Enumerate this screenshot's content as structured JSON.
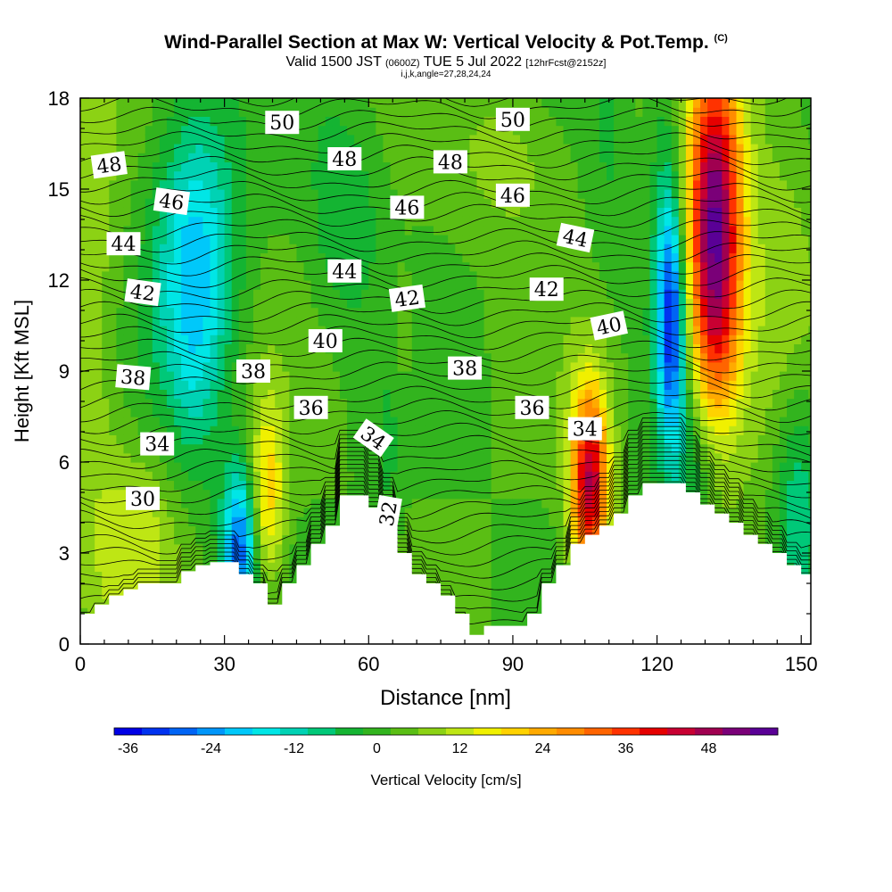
{
  "header": {
    "title": "Wind-Parallel Section at Max W: Vertical Velocity & Pot.Temp.",
    "copyright": "(C)",
    "valid_prefix": "Valid 1500 JST",
    "valid_utc": "(0600Z)",
    "valid_date": "TUE 5 Jul 2022",
    "forecast": "[12hrFcst@2152z]",
    "indices": "i,j,k,angle=27,28,24,24"
  },
  "chart_data": {
    "type": "heatmap",
    "xlabel": "Distance [nm]",
    "ylabel": "Height [Kft MSL]",
    "xlim": [
      0,
      152
    ],
    "ylim": [
      0,
      18
    ],
    "x_ticks": [
      0,
      30,
      60,
      90,
      120,
      150
    ],
    "y_ticks": [
      0,
      3,
      6,
      9,
      12,
      15,
      18
    ],
    "colorbar": {
      "label": "Vertical Velocity [cm/s]",
      "min": -38,
      "max": 54,
      "step": 4,
      "tick_values": [
        -36,
        -24,
        -12,
        0,
        12,
        24,
        36,
        48
      ],
      "colors": [
        "#0000e6",
        "#0032f0",
        "#0064f5",
        "#0096fa",
        "#00c8fa",
        "#00e6e6",
        "#00d2b4",
        "#00c878",
        "#14b432",
        "#32b41e",
        "#5abe14",
        "#8cd214",
        "#bee614",
        "#f0f000",
        "#ffd200",
        "#ffaa00",
        "#ff8c00",
        "#ff6400",
        "#ff3200",
        "#e60000",
        "#c80032",
        "#a00050",
        "#7a0078",
        "#5a0096"
      ]
    },
    "terrain": [
      [
        0,
        1.0
      ],
      [
        3,
        1.0
      ],
      [
        3,
        1.3
      ],
      [
        6,
        1.3
      ],
      [
        6,
        1.6
      ],
      [
        9,
        1.6
      ],
      [
        9,
        1.8
      ],
      [
        12,
        1.8
      ],
      [
        12,
        2.0
      ],
      [
        21,
        2.0
      ],
      [
        21,
        2.4
      ],
      [
        24,
        2.4
      ],
      [
        24,
        2.6
      ],
      [
        27,
        2.6
      ],
      [
        27,
        2.7
      ],
      [
        33,
        2.7
      ],
      [
        33,
        2.3
      ],
      [
        36,
        2.3
      ],
      [
        36,
        2.0
      ],
      [
        39,
        2.0
      ],
      [
        39,
        1.3
      ],
      [
        42,
        1.3
      ],
      [
        42,
        2.0
      ],
      [
        45,
        2.0
      ],
      [
        45,
        2.6
      ],
      [
        48,
        2.6
      ],
      [
        48,
        3.3
      ],
      [
        51,
        3.3
      ],
      [
        51,
        3.9
      ],
      [
        54,
        3.9
      ],
      [
        54,
        4.9
      ],
      [
        60,
        4.9
      ],
      [
        60,
        4.5
      ],
      [
        63,
        4.5
      ],
      [
        63,
        3.9
      ],
      [
        66,
        3.9
      ],
      [
        66,
        3.0
      ],
      [
        69,
        3.0
      ],
      [
        69,
        2.3
      ],
      [
        72,
        2.3
      ],
      [
        72,
        2.0
      ],
      [
        75,
        2.0
      ],
      [
        75,
        1.6
      ],
      [
        78,
        1.6
      ],
      [
        78,
        1.0
      ],
      [
        81,
        1.0
      ],
      [
        81,
        0.3
      ],
      [
        84,
        0.3
      ],
      [
        84,
        0.6
      ],
      [
        93,
        0.6
      ],
      [
        93,
        1.0
      ],
      [
        96,
        1.0
      ],
      [
        96,
        2.0
      ],
      [
        99,
        2.0
      ],
      [
        99,
        2.6
      ],
      [
        102,
        2.6
      ],
      [
        102,
        3.3
      ],
      [
        105,
        3.3
      ],
      [
        105,
        3.6
      ],
      [
        108,
        3.6
      ],
      [
        108,
        3.9
      ],
      [
        111,
        3.9
      ],
      [
        111,
        4.3
      ],
      [
        114,
        4.3
      ],
      [
        114,
        4.9
      ],
      [
        117,
        4.9
      ],
      [
        117,
        5.3
      ],
      [
        126,
        5.3
      ],
      [
        126,
        5.0
      ],
      [
        129,
        5.0
      ],
      [
        129,
        4.6
      ],
      [
        132,
        4.6
      ],
      [
        132,
        4.3
      ],
      [
        135,
        4.3
      ],
      [
        135,
        4.0
      ],
      [
        138,
        4.0
      ],
      [
        138,
        3.6
      ],
      [
        141,
        3.6
      ],
      [
        141,
        3.3
      ],
      [
        144,
        3.3
      ],
      [
        144,
        3.0
      ],
      [
        147,
        3.0
      ],
      [
        147,
        2.6
      ],
      [
        150,
        2.6
      ],
      [
        150,
        2.3
      ],
      [
        152,
        2.3
      ]
    ],
    "w_features": [
      {
        "x": 3,
        "y": 11,
        "sx": 4,
        "sy": 9,
        "v": 6
      },
      {
        "x": 12,
        "y": 3.5,
        "sx": 6,
        "sy": 2.2,
        "v": 10
      },
      {
        "x": 24,
        "y": 13,
        "sx": 6,
        "sy": 3.5,
        "v": -20
      },
      {
        "x": 24,
        "y": 9,
        "sx": 4,
        "sy": 3,
        "v": -6
      },
      {
        "x": 33,
        "y": 3.2,
        "sx": 2.5,
        "sy": 1.8,
        "v": -30
      },
      {
        "x": 39,
        "y": 5,
        "sx": 2.5,
        "sy": 2.2,
        "v": 18
      },
      {
        "x": 55,
        "y": 14,
        "sx": 5,
        "sy": 2.5,
        "v": -8
      },
      {
        "x": 64,
        "y": 7,
        "sx": 2,
        "sy": 3,
        "v": -5
      },
      {
        "x": 66,
        "y": 10,
        "sx": 3,
        "sy": 2,
        "v": 5
      },
      {
        "x": 90,
        "y": 16,
        "sx": 8,
        "sy": 2,
        "v": 6
      },
      {
        "x": 106,
        "y": 5.3,
        "sx": 2.8,
        "sy": 2.3,
        "v": 44
      },
      {
        "x": 110,
        "y": 16,
        "sx": 3,
        "sy": 3,
        "v": -4
      },
      {
        "x": 123,
        "y": 10.5,
        "sx": 2,
        "sy": 2.5,
        "v": -30
      },
      {
        "x": 122,
        "y": 14,
        "sx": 2.5,
        "sy": 4,
        "v": -10
      },
      {
        "x": 132,
        "y": 13.2,
        "sx": 4,
        "sy": 4.5,
        "v": 54
      },
      {
        "x": 128,
        "y": 6,
        "sx": 5,
        "sy": 2,
        "v": -12
      },
      {
        "x": 149,
        "y": 5,
        "sx": 4,
        "sy": 3,
        "v": -14
      },
      {
        "x": 145,
        "y": 10,
        "sx": 6,
        "sy": 6,
        "v": 7
      }
    ],
    "theta_labels": [
      {
        "text": "50",
        "x": 42,
        "y": 17.2,
        "angle": 0
      },
      {
        "text": "50",
        "x": 90,
        "y": 17.3,
        "angle": 0
      },
      {
        "text": "48",
        "x": 6,
        "y": 15.8,
        "angle": -8
      },
      {
        "text": "48",
        "x": 55,
        "y": 16,
        "angle": 0
      },
      {
        "text": "48",
        "x": 77,
        "y": 15.9,
        "angle": 0
      },
      {
        "text": "46",
        "x": 19,
        "y": 14.6,
        "angle": 8
      },
      {
        "text": "46",
        "x": 68,
        "y": 14.4,
        "angle": 0
      },
      {
        "text": "46",
        "x": 90,
        "y": 14.8,
        "angle": 0
      },
      {
        "text": "44",
        "x": 9,
        "y": 13.2,
        "angle": 0
      },
      {
        "text": "44",
        "x": 55,
        "y": 12.3,
        "angle": 0
      },
      {
        "text": "44",
        "x": 103,
        "y": 13.4,
        "angle": 12
      },
      {
        "text": "42",
        "x": 13,
        "y": 11.6,
        "angle": 8
      },
      {
        "text": "42",
        "x": 68,
        "y": 11.4,
        "angle": -8
      },
      {
        "text": "42",
        "x": 97,
        "y": 11.7,
        "angle": 0
      },
      {
        "text": "40",
        "x": 51,
        "y": 10,
        "angle": 0
      },
      {
        "text": "40",
        "x": 110,
        "y": 10.5,
        "angle": -12
      },
      {
        "text": "38",
        "x": 11,
        "y": 8.8,
        "angle": 5
      },
      {
        "text": "38",
        "x": 36,
        "y": 9,
        "angle": 0
      },
      {
        "text": "38",
        "x": 80,
        "y": 9.1,
        "angle": 0
      },
      {
        "text": "36",
        "x": 48,
        "y": 7.8,
        "angle": 0
      },
      {
        "text": "36",
        "x": 94,
        "y": 7.8,
        "angle": 0
      },
      {
        "text": "34",
        "x": 16,
        "y": 6.6,
        "angle": 0
      },
      {
        "text": "34",
        "x": 61,
        "y": 6.8,
        "angle": 35
      },
      {
        "text": "34",
        "x": 105,
        "y": 7.1,
        "angle": 0
      },
      {
        "text": "30",
        "x": 13,
        "y": 4.8,
        "angle": 0
      },
      {
        "text": "32",
        "x": 64,
        "y": 4.3,
        "angle": -80
      }
    ]
  }
}
